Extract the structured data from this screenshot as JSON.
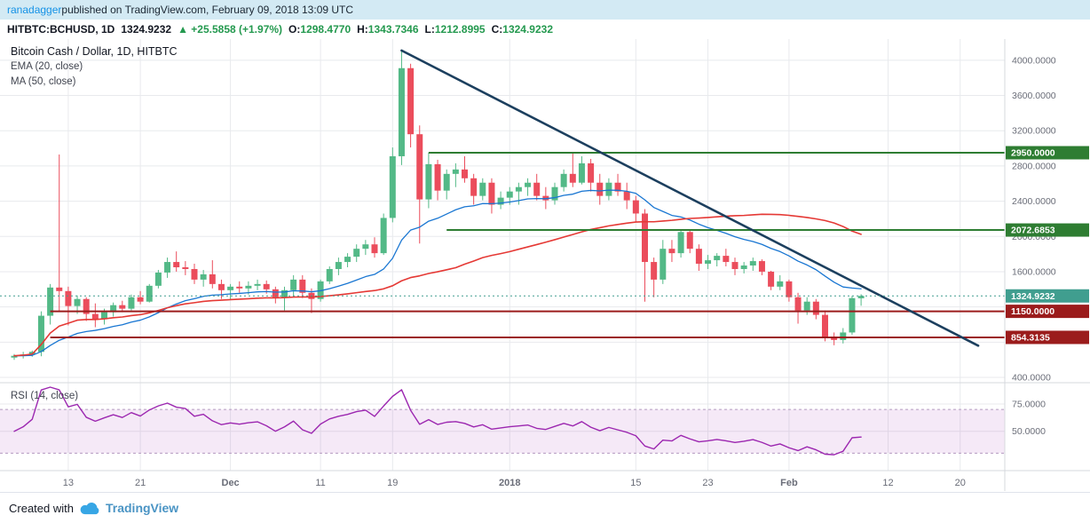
{
  "header": {
    "username": "ranadagger",
    "suffix": " published on TradingView.com, February 09, 2018 13:09 UTC"
  },
  "symbol_bar": {
    "symbol": "HITBTC:BCHUSD, 1D",
    "price": "1324.9232",
    "change": "▲ +25.5858 (+1.97%)",
    "ohlc": [
      {
        "label": "O:",
        "value": "1298.4770"
      },
      {
        "label": "H:",
        "value": "1343.7346"
      },
      {
        "label": "L:",
        "value": "1212.8995"
      },
      {
        "label": "C:",
        "value": "1324.9232"
      }
    ]
  },
  "legend": {
    "title": "Bitcoin Cash / Dollar, 1D, HITBTC",
    "ema": "EMA (20, close)",
    "ma": "MA (50, close)"
  },
  "footer": {
    "created_with": "Created with",
    "brand": "TradingView"
  },
  "colors": {
    "header_bg": "#d3eaf4",
    "link": "#1592e6",
    "green_text": "#24994f",
    "candle_up": "#53b987",
    "candle_down": "#eb4d5c",
    "grid": "#e8eaed",
    "border": "#d6d9de",
    "axis_text": "#6a6d78",
    "rsi_band": "rgba(156,39,176,0.10)",
    "rsi_band_border": "#b59ac0"
  },
  "chart_data": {
    "type": "candlestick",
    "title": "Bitcoin Cash / Dollar, 1D, HITBTC",
    "timeframe": "1D",
    "exchange": "HITBTC",
    "y_grid": [
      400,
      800,
      1200,
      1600,
      2000,
      2400,
      2800,
      3200,
      3600,
      4000
    ],
    "y_ticks": [
      {
        "price": 400,
        "label": "400.0000"
      },
      {
        "price": 1600,
        "label": "1600.0000"
      },
      {
        "price": 2000,
        "label": "2000.0000"
      },
      {
        "price": 2400,
        "label": "2400.0000"
      },
      {
        "price": 2800,
        "label": "2800.0000"
      },
      {
        "price": 3200,
        "label": "3200.0000"
      },
      {
        "price": 3600,
        "label": "3600.0000"
      },
      {
        "price": 4000,
        "label": "4000.0000"
      }
    ],
    "x_labels": [
      {
        "i": 6,
        "label": "13"
      },
      {
        "i": 14,
        "label": "21"
      },
      {
        "i": 24,
        "label": "Dec",
        "major": true
      },
      {
        "i": 34,
        "label": "11"
      },
      {
        "i": 42,
        "label": "19"
      },
      {
        "i": 55,
        "label": "2018",
        "major": true
      },
      {
        "i": 69,
        "label": "15"
      },
      {
        "i": 77,
        "label": "23"
      },
      {
        "i": 86,
        "label": "Feb",
        "major": true
      },
      {
        "i": 97,
        "label": "12"
      },
      {
        "i": 105,
        "label": "20"
      }
    ],
    "candles": [
      [
        625,
        665,
        600,
        645
      ],
      [
        645,
        690,
        615,
        660
      ],
      [
        660,
        705,
        635,
        690
      ],
      [
        690,
        1150,
        640,
        1100
      ],
      [
        1100,
        1460,
        1000,
        1420
      ],
      [
        1420,
        2930,
        1150,
        1380
      ],
      [
        1380,
        1430,
        990,
        1210
      ],
      [
        1210,
        1330,
        1120,
        1290
      ],
      [
        1290,
        1310,
        1040,
        1120
      ],
      [
        1120,
        1240,
        970,
        1060
      ],
      [
        1060,
        1180,
        1000,
        1140
      ],
      [
        1140,
        1250,
        1090,
        1220
      ],
      [
        1220,
        1270,
        1140,
        1180
      ],
      [
        1180,
        1340,
        1160,
        1310
      ],
      [
        1310,
        1380,
        1230,
        1260
      ],
      [
        1260,
        1460,
        1250,
        1440
      ],
      [
        1440,
        1620,
        1410,
        1590
      ],
      [
        1590,
        1760,
        1530,
        1710
      ],
      [
        1710,
        1830,
        1600,
        1650
      ],
      [
        1650,
        1720,
        1560,
        1630
      ],
      [
        1630,
        1690,
        1460,
        1510
      ],
      [
        1510,
        1620,
        1430,
        1570
      ],
      [
        1570,
        1730,
        1410,
        1460
      ],
      [
        1460,
        1510,
        1290,
        1390
      ],
      [
        1390,
        1460,
        1280,
        1430
      ],
      [
        1430,
        1490,
        1360,
        1410
      ],
      [
        1410,
        1490,
        1340,
        1440
      ],
      [
        1440,
        1510,
        1390,
        1460
      ],
      [
        1460,
        1500,
        1350,
        1400
      ],
      [
        1400,
        1430,
        1240,
        1310
      ],
      [
        1310,
        1430,
        1160,
        1390
      ],
      [
        1390,
        1560,
        1310,
        1510
      ],
      [
        1510,
        1560,
        1300,
        1360
      ],
      [
        1360,
        1410,
        1130,
        1290
      ],
      [
        1290,
        1510,
        1260,
        1490
      ],
      [
        1490,
        1660,
        1460,
        1630
      ],
      [
        1630,
        1760,
        1560,
        1710
      ],
      [
        1710,
        1810,
        1650,
        1770
      ],
      [
        1770,
        1910,
        1710,
        1860
      ],
      [
        1860,
        1960,
        1790,
        1910
      ],
      [
        1910,
        1990,
        1760,
        1810
      ],
      [
        1810,
        2260,
        1790,
        2210
      ],
      [
        2210,
        3010,
        2160,
        2910
      ],
      [
        2910,
        4110,
        2810,
        3910
      ],
      [
        3910,
        3960,
        3010,
        3160
      ],
      [
        3160,
        3260,
        1920,
        2420
      ],
      [
        2420,
        2950,
        2320,
        2820
      ],
      [
        2820,
        2870,
        2410,
        2520
      ],
      [
        2520,
        2760,
        2420,
        2710
      ],
      [
        2710,
        2830,
        2560,
        2760
      ],
      [
        2760,
        2910,
        2610,
        2660
      ],
      [
        2660,
        2710,
        2360,
        2460
      ],
      [
        2460,
        2660,
        2410,
        2610
      ],
      [
        2610,
        2660,
        2260,
        2360
      ],
      [
        2360,
        2510,
        2310,
        2440
      ],
      [
        2440,
        2560,
        2360,
        2510
      ],
      [
        2510,
        2610,
        2360,
        2560
      ],
      [
        2560,
        2660,
        2460,
        2610
      ],
      [
        2610,
        2710,
        2410,
        2460
      ],
      [
        2460,
        2560,
        2310,
        2410
      ],
      [
        2410,
        2610,
        2360,
        2560
      ],
      [
        2560,
        2760,
        2510,
        2710
      ],
      [
        2710,
        2950,
        2560,
        2610
      ],
      [
        2610,
        2910,
        2590,
        2830
      ],
      [
        2830,
        2880,
        2510,
        2610
      ],
      [
        2610,
        2710,
        2360,
        2460
      ],
      [
        2460,
        2660,
        2410,
        2610
      ],
      [
        2610,
        2710,
        2460,
        2510
      ],
      [
        2510,
        2610,
        2310,
        2410
      ],
      [
        2410,
        2460,
        2160,
        2260
      ],
      [
        2260,
        2310,
        1260,
        1710
      ],
      [
        1710,
        1760,
        1310,
        1510
      ],
      [
        1510,
        1960,
        1460,
        1860
      ],
      [
        1860,
        1960,
        1710,
        1810
      ],
      [
        1810,
        2075,
        1760,
        2050
      ],
      [
        2050,
        2080,
        1810,
        1860
      ],
      [
        1860,
        1910,
        1610,
        1690
      ],
      [
        1690,
        1790,
        1630,
        1730
      ],
      [
        1730,
        1810,
        1660,
        1780
      ],
      [
        1780,
        1860,
        1660,
        1710
      ],
      [
        1710,
        1760,
        1560,
        1630
      ],
      [
        1630,
        1710,
        1580,
        1670
      ],
      [
        1670,
        1760,
        1610,
        1720
      ],
      [
        1720,
        1740,
        1560,
        1600
      ],
      [
        1600,
        1610,
        1390,
        1430
      ],
      [
        1430,
        1560,
        1390,
        1490
      ],
      [
        1490,
        1510,
        1260,
        1310
      ],
      [
        1310,
        1360,
        1010,
        1160
      ],
      [
        1160,
        1310,
        1110,
        1260
      ],
      [
        1260,
        1290,
        1060,
        1110
      ],
      [
        1110,
        1160,
        810,
        860
      ],
      [
        860,
        910,
        765,
        825
      ],
      [
        825,
        960,
        785,
        910
      ],
      [
        910,
        1325,
        885,
        1300
      ],
      [
        1298.477,
        1343.7346,
        1212.8995,
        1324.9232
      ]
    ],
    "overlays": {
      "ema": {
        "name": "EMA (20, close)",
        "period": 20,
        "color": "#1976d2"
      },
      "ma": {
        "name": "MA (50, close)",
        "period": 50,
        "color": "#e53935"
      },
      "trendline": {
        "from": {
          "i": 43,
          "price": 4110
        },
        "to": {
          "i": 107,
          "price": 760
        },
        "color": "#1c3f5e"
      },
      "hlines": [
        {
          "price": 2950.0,
          "label": "2950.0000",
          "color": "#2e7d32",
          "from_i": 46
        },
        {
          "price": 2072.6853,
          "label": "2072.6853",
          "color": "#2e7d32",
          "from_i": 48
        },
        {
          "price": 1150.0,
          "label": "1150.0000",
          "color": "#9b1c1c",
          "from_i": 4
        },
        {
          "price": 854.3135,
          "label": "854.3135",
          "color": "#9b1c1c",
          "from_i": 4
        }
      ],
      "last_price": {
        "price": 1324.9232,
        "label": "1324.9232",
        "color": "#409e8f"
      }
    },
    "rsi": {
      "label": "RSI (14, close)",
      "period": 14,
      "color": "#9c27b0",
      "band": [
        30,
        70
      ],
      "axis_labels": [
        {
          "value": 75,
          "label": "75.0000"
        },
        {
          "value": 50,
          "label": "50.0000"
        }
      ]
    }
  }
}
